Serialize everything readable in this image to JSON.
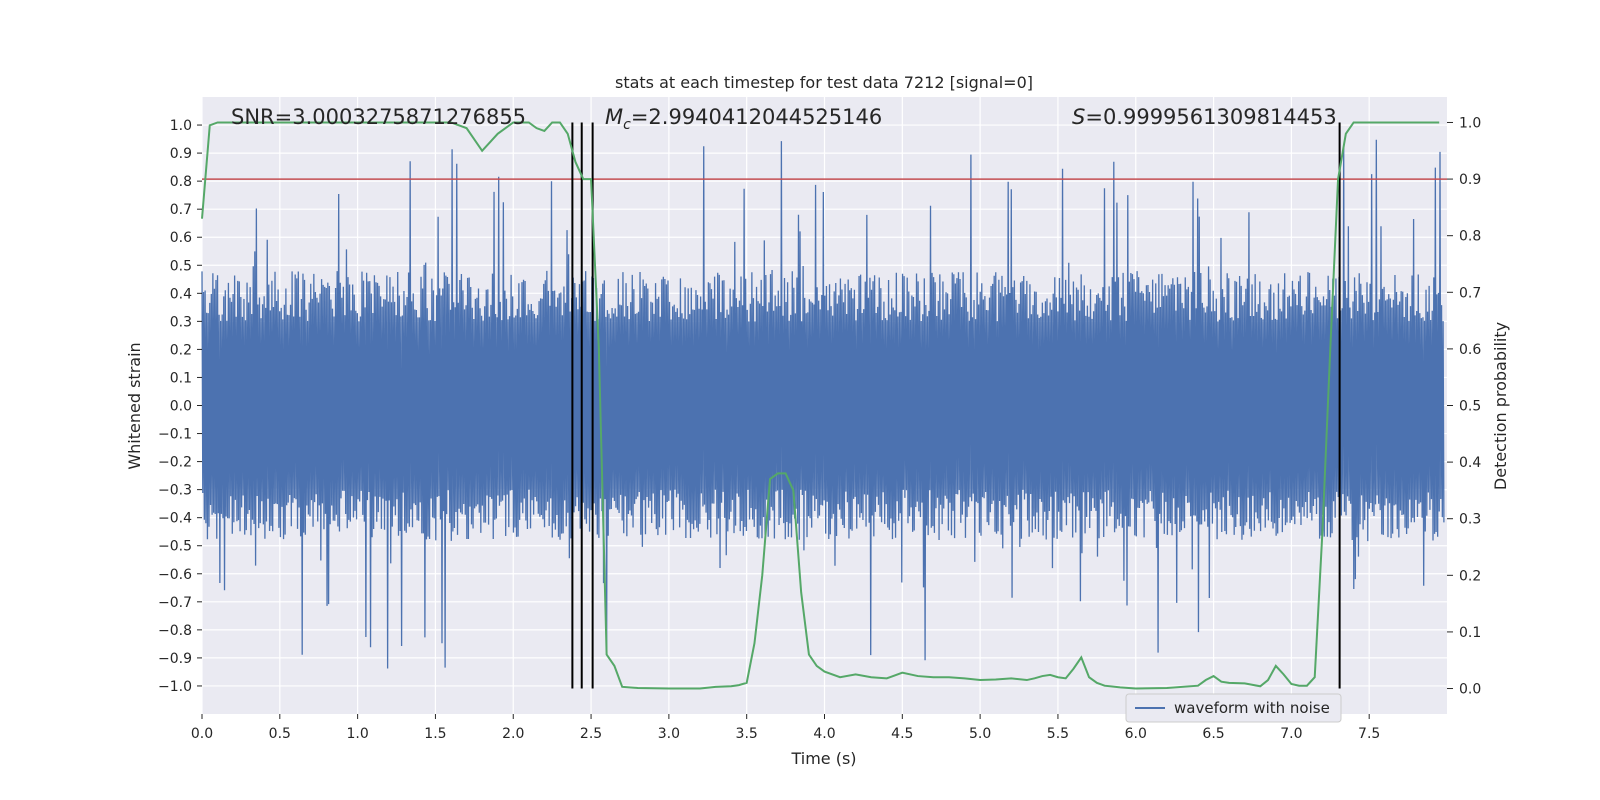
{
  "chart_data": {
    "type": "line",
    "title": "stats at each timestep for test data 7212 [signal=0]",
    "xlabel": "Time (s)",
    "ylabel": "Whitened strain",
    "y2label": "Detection probability",
    "xlim": [
      0.0,
      8.0
    ],
    "ylim": [
      -1.1,
      1.1
    ],
    "y2lim": [
      -0.045,
      1.045
    ],
    "xticks": [
      "0.0",
      "0.5",
      "1.0",
      "1.5",
      "2.0",
      "2.5",
      "3.0",
      "3.5",
      "4.0",
      "4.5",
      "5.0",
      "5.5",
      "6.0",
      "6.5",
      "7.0",
      "7.5"
    ],
    "yticks": [
      "1.0",
      "0.9",
      "0.8",
      "0.7",
      "0.6",
      "0.5",
      "0.4",
      "0.3",
      "0.2",
      "0.1",
      "0.0",
      "−0.1",
      "−0.2",
      "−0.3",
      "−0.4",
      "−0.5",
      "−0.6",
      "−0.7",
      "−0.8",
      "−0.9",
      "−1.0"
    ],
    "y2ticks": [
      "1.0",
      "0.9",
      "0.8",
      "0.7",
      "0.6",
      "0.5",
      "0.4",
      "0.3",
      "0.2",
      "0.1",
      "0.0"
    ],
    "annotations": {
      "snr": "SNR=3.0003275871276855",
      "mc_symbol": "M",
      "mc_sub": "c",
      "mc_value": "=2.9940412044525146",
      "s_symbol": "S",
      "s_value": "=0.9999561309814453"
    },
    "threshold": {
      "y": 0.9,
      "axis": "right",
      "color": "#c44e52"
    },
    "vlines": [
      2.38,
      2.44,
      2.51,
      7.31
    ],
    "legend": {
      "label": "waveform with noise",
      "location": "lower-right"
    },
    "series": [
      {
        "name": "waveform with noise",
        "axis": "left",
        "color": "#4c72b0",
        "description": "noisy whitened strain, dense oscillation, core amplitude ~0.4, peaks up to ~0.95",
        "envelope": {
          "core": 0.4,
          "peak_max": 0.95,
          "sample_count": 1600
        }
      },
      {
        "name": "detection probability",
        "axis": "right",
        "color": "#55a868",
        "x": [
          0.0,
          0.05,
          0.1,
          0.2,
          0.3,
          0.5,
          0.8,
          1.0,
          1.2,
          1.4,
          1.6,
          1.7,
          1.75,
          1.8,
          1.85,
          1.9,
          2.0,
          2.1,
          2.15,
          2.2,
          2.25,
          2.3,
          2.35,
          2.4,
          2.45,
          2.5,
          2.55,
          2.6,
          2.65,
          2.7,
          2.8,
          3.0,
          3.2,
          3.3,
          3.4,
          3.45,
          3.5,
          3.55,
          3.6,
          3.65,
          3.7,
          3.75,
          3.8,
          3.85,
          3.9,
          3.95,
          4.0,
          4.1,
          4.2,
          4.3,
          4.4,
          4.5,
          4.6,
          4.7,
          4.8,
          4.9,
          5.0,
          5.1,
          5.2,
          5.3,
          5.35,
          5.4,
          5.45,
          5.5,
          5.55,
          5.6,
          5.65,
          5.7,
          5.75,
          5.8,
          5.9,
          6.0,
          6.2,
          6.4,
          6.45,
          6.5,
          6.55,
          6.6,
          6.7,
          6.8,
          6.85,
          6.9,
          6.95,
          7.0,
          7.05,
          7.1,
          7.15,
          7.2,
          7.25,
          7.3,
          7.35,
          7.4,
          7.45,
          7.5,
          7.6,
          7.7,
          7.95
        ],
        "y": [
          0.83,
          0.995,
          1.0,
          1.0,
          1.0,
          1.0,
          1.0,
          1.0,
          1.0,
          1.0,
          1.0,
          0.99,
          0.97,
          0.95,
          0.965,
          0.98,
          1.0,
          1.0,
          0.99,
          0.985,
          1.0,
          1.0,
          0.98,
          0.93,
          0.9,
          0.9,
          0.6,
          0.06,
          0.04,
          0.003,
          0.001,
          0.0,
          0.0,
          0.003,
          0.004,
          0.006,
          0.01,
          0.08,
          0.2,
          0.37,
          0.38,
          0.38,
          0.35,
          0.17,
          0.06,
          0.04,
          0.03,
          0.02,
          0.025,
          0.02,
          0.018,
          0.028,
          0.022,
          0.02,
          0.02,
          0.018,
          0.015,
          0.016,
          0.018,
          0.015,
          0.018,
          0.022,
          0.024,
          0.02,
          0.018,
          0.035,
          0.055,
          0.02,
          0.01,
          0.005,
          0.002,
          0.0,
          0.001,
          0.005,
          0.015,
          0.022,
          0.012,
          0.01,
          0.009,
          0.004,
          0.015,
          0.04,
          0.025,
          0.008,
          0.005,
          0.005,
          0.02,
          0.28,
          0.6,
          0.9,
          0.98,
          1.0,
          1.0,
          1.0,
          1.0,
          1.0,
          1.0
        ]
      }
    ]
  }
}
